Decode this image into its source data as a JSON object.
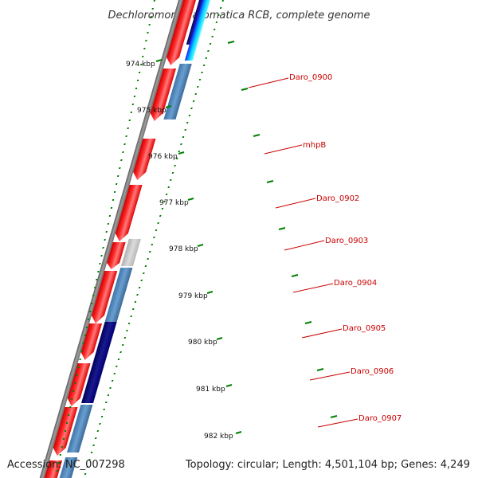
{
  "title": "Dechloromonas aromatica RCB, complete genome",
  "ticks": [
    "974 kbp",
    "975 kbp",
    "976 kbp",
    "977 kbp",
    "978 kbp",
    "979 kbp",
    "980 kbp",
    "981 kbp",
    "982 kbp"
  ],
  "genes": [
    "Daro_0900",
    "mhpB",
    "Daro_0902",
    "Daro_0903",
    "Daro_0904",
    "Daro_0905",
    "Daro_0906",
    "Daro_0907"
  ],
  "footer": {
    "accession": "Accession: NC_007298",
    "topology": "Topology: circular; Length: 4,501,104 bp; Genes: 4,249"
  },
  "colors": {
    "forward_strand": "#ff0000",
    "reverse_strand": "#4682b4",
    "dark_blue": "#000080",
    "gray": "#c0c0c0",
    "tick": "#008000",
    "label": "#cc0000"
  }
}
